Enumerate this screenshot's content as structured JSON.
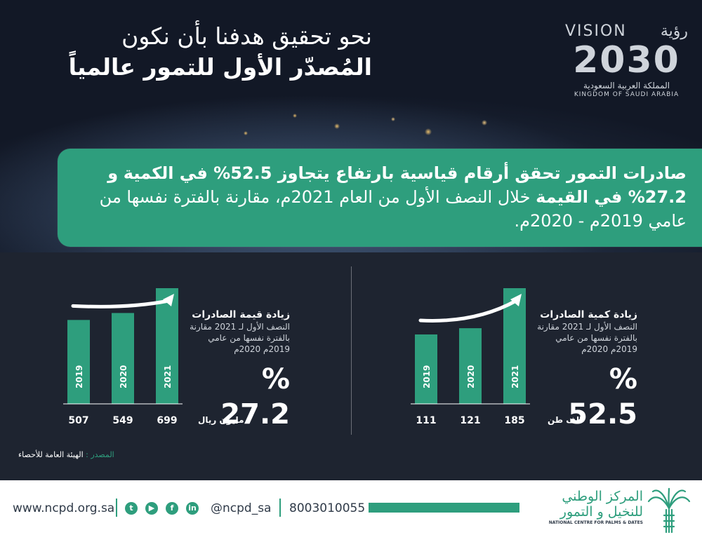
{
  "headline": {
    "line1": "نحو تحقيق هدفنا بأن نكون",
    "line2": "المُصدّر الأول للتمور عالمياً"
  },
  "vision_logo": {
    "word_en": "VISION",
    "word_ar": "رؤية",
    "year": "2030",
    "country_ar": "المملكة العربية السعودية",
    "country_en": "KINGDOM OF SAUDI ARABIA"
  },
  "banner": {
    "part1": "صادرات التمور تحقق أرقام قياسية بارتفاع يتجاوز 52.5% في الكمية",
    "part2": "و 27.2% في القيمة",
    "part3": "خلال النصف الأول من العام 2021م، مقارنة بالفترة نفسها من عامي 2019م - 2020م."
  },
  "chart_data": [
    {
      "type": "bar",
      "title": "زيادة قيمة الصادرات",
      "subtitle": "النصف الأول لـ 2021 مقارنة بالفترة نفسها من عامي 2019م 2020م",
      "categories": [
        "2019",
        "2020",
        "2021"
      ],
      "values": [
        507,
        549,
        699
      ],
      "unit": "مليون ريال",
      "change": "% 27.2",
      "ylim": [
        0,
        699
      ]
    },
    {
      "type": "bar",
      "title": "زيادة كمية الصادرات",
      "subtitle": "النصف الأول لـ 2021 مقارنة بالفترة نفسها من عامي 2019م 2020م",
      "categories": [
        "2019",
        "2020",
        "2021"
      ],
      "values": [
        111,
        121,
        185
      ],
      "unit": "الف طن",
      "change": "% 52.5",
      "ylim": [
        0,
        185
      ]
    }
  ],
  "source": {
    "label": "المصدر :",
    "value": "الهيئة العامة للأحصاء"
  },
  "footer": {
    "url": "www.ncpd.org.sa",
    "handle": "@ncpd_sa",
    "phone": "8003010055",
    "org_ar_line1": "المركز الوطني",
    "org_ar_line2": "للنخيل و التمور",
    "org_en": "NATIONAL CENTRE FOR PALMS & DATES",
    "icons": [
      "twitter-icon",
      "youtube-icon",
      "facebook-icon",
      "linkedin-icon"
    ]
  },
  "colors": {
    "accent": "#2e9e7d",
    "bg": "#1e2430"
  }
}
